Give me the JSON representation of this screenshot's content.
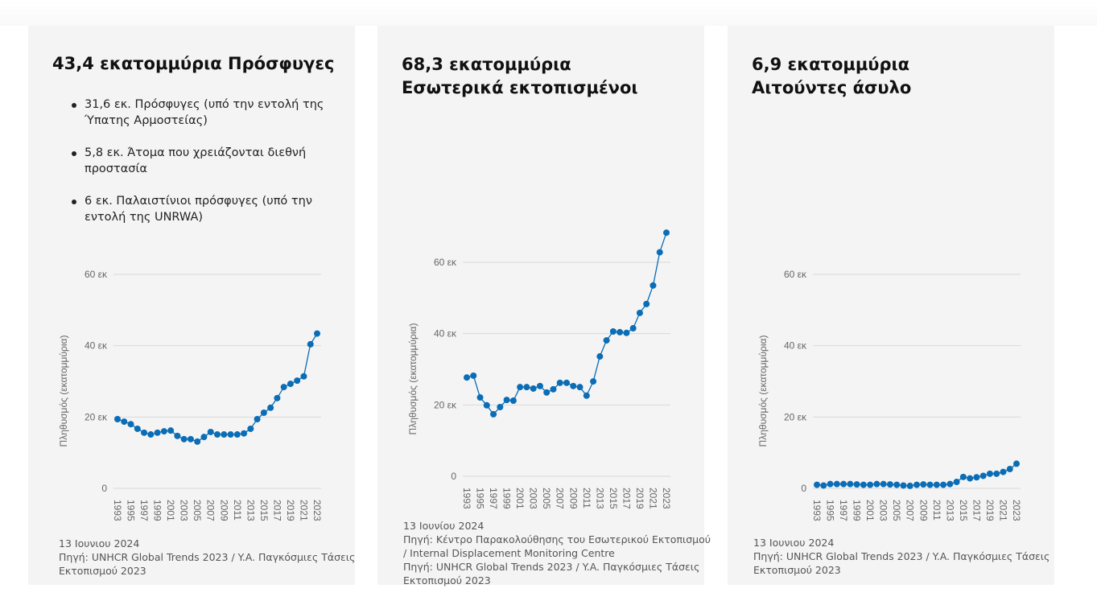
{
  "panels": [
    {
      "title_lines": [
        "43,4 εκατομμύρια Πρόσφυγες"
      ],
      "bullets": [
        "31,6 εκ. Πρόσφυγες (υπό την εντολή της Ύπατης Αρμοστείας)",
        "5,8 εκ. Άτομα που χρειάζονται διεθνή προστασία",
        "6 εκ. Παλαιστίνιοι πρόσφυγες (υπό την εντολή της UNRWA)"
      ],
      "footer": [
        "13  Ιουνιου 2024",
        "Πηγή: UNHCR Global Trends 2023 / Y.A. Παγκόσμιες Τάσεις",
        "Εκτοπισμού 2023"
      ]
    },
    {
      "title_lines": [
        "68,3 εκατομμύρια",
        "Εσωτερικά εκτοπισμένοι"
      ],
      "bullets": [],
      "footer": [
        "13  Ιουνίου 2024",
        "Πηγή: Κέντρο Παρακολούθησης του Εσωτερικού Εκτοπισμού",
        "/ Internal Displacement Monitoring Centre",
        "Πηγή: UNHCR Global Trends 2023 / Y.A. Παγκόσμιες Τάσεις",
        "Εκτοπισμού 2023"
      ]
    },
    {
      "title_lines": [
        "6,9 εκατομμύρια",
        "Αιτούντες άσυλο"
      ],
      "bullets": [],
      "footer": [
        "13  Ιουνιου 2024",
        "Πηγή: UNHCR Global Trends 2023 / Y.A. Παγκόσμιες Τάσεις",
        "Εκτοπισμού 2023"
      ]
    }
  ],
  "colors": {
    "series": "#0a6db5",
    "grid": "#d9d9d9",
    "tick_text": "#666666",
    "panel_bg": "#f4f4f4"
  },
  "chart_data": [
    {
      "type": "line",
      "title": "43,4 εκατομμύρια Πρόσφυγες",
      "xlabel": "",
      "ylabel": "Πληθυσμός (εκατομμύρια)",
      "x": [
        1993,
        1994,
        1995,
        1996,
        1997,
        1998,
        1999,
        2000,
        2001,
        2002,
        2003,
        2004,
        2005,
        2006,
        2007,
        2008,
        2009,
        2010,
        2011,
        2012,
        2013,
        2014,
        2015,
        2016,
        2017,
        2018,
        2019,
        2020,
        2021,
        2022,
        2023
      ],
      "values": [
        19.4,
        18.7,
        18.0,
        16.7,
        15.6,
        15.1,
        15.6,
        16.0,
        16.2,
        14.7,
        13.8,
        13.8,
        13.1,
        14.4,
        15.8,
        15.1,
        15.1,
        15.1,
        15.1,
        15.4,
        16.7,
        19.4,
        21.2,
        22.6,
        25.3,
        28.4,
        29.3,
        30.2,
        31.4,
        40.4,
        43.4
      ],
      "xticks": [
        "1993",
        "1995",
        "1997",
        "1999",
        "2001",
        "2003",
        "2005",
        "2007",
        "2009",
        "2011",
        "2013",
        "2015",
        "2017",
        "2019",
        "2021",
        "2023"
      ],
      "yticks": [
        {
          "v": 0,
          "label": "0"
        },
        {
          "v": 20,
          "label": "20 εκ"
        },
        {
          "v": 40,
          "label": "40 εκ"
        },
        {
          "v": 60,
          "label": "60 εκ"
        }
      ],
      "ylim": [
        0,
        60
      ],
      "grid": true
    },
    {
      "type": "line",
      "title": "68,3 εκατομμύρια Εσωτερικά εκτοπισμένοι",
      "xlabel": "",
      "ylabel": "Πληθυσμός (εκατομμύρια)",
      "x": [
        1993,
        1994,
        1995,
        1996,
        1997,
        1998,
        1999,
        2000,
        2001,
        2002,
        2003,
        2004,
        2005,
        2006,
        2007,
        2008,
        2009,
        2010,
        2011,
        2012,
        2013,
        2014,
        2015,
        2016,
        2017,
        2018,
        2019,
        2020,
        2021,
        2022,
        2023
      ],
      "values": [
        27.7,
        28.2,
        22.1,
        19.9,
        17.4,
        19.4,
        21.4,
        21.2,
        25.0,
        25.0,
        24.6,
        25.3,
        23.5,
        24.4,
        26.2,
        26.2,
        25.3,
        25.0,
        22.6,
        26.6,
        33.6,
        38.1,
        40.6,
        40.4,
        40.2,
        41.5,
        45.8,
        48.3,
        53.5,
        62.8,
        68.3
      ],
      "xticks": [
        "1993",
        "1995",
        "1997",
        "1999",
        "2001",
        "2003",
        "2005",
        "2007",
        "2009",
        "2011",
        "2013",
        "2015",
        "2017",
        "2019",
        "2021",
        "2023"
      ],
      "yticks": [
        {
          "v": 0,
          "label": "0"
        },
        {
          "v": 20,
          "label": "20 εκ"
        },
        {
          "v": 40,
          "label": "40 εκ"
        },
        {
          "v": 60,
          "label": "60 εκ"
        }
      ],
      "ylim": [
        0,
        60
      ],
      "grid": true
    },
    {
      "type": "line",
      "title": "6,9 εκατομμύρια Αιτούντες άσυλο",
      "xlabel": "",
      "ylabel": "Πληθυσμός (εκατομμύρια)",
      "x": [
        1993,
        1994,
        1995,
        1996,
        1997,
        1998,
        1999,
        2000,
        2001,
        2002,
        2003,
        2004,
        2005,
        2006,
        2007,
        2008,
        2009,
        2010,
        2011,
        2012,
        2013,
        2014,
        2015,
        2016,
        2017,
        2018,
        2019,
        2020,
        2021,
        2022,
        2023
      ],
      "values": [
        1.0,
        0.8,
        1.2,
        1.2,
        1.2,
        1.2,
        1.1,
        1.0,
        1.0,
        1.2,
        1.2,
        1.1,
        1.0,
        0.8,
        0.7,
        1.0,
        1.1,
        1.0,
        1.0,
        1.0,
        1.2,
        1.8,
        3.2,
        2.8,
        3.1,
        3.5,
        4.1,
        4.1,
        4.6,
        5.4,
        6.9
      ],
      "xticks": [
        "1993",
        "1995",
        "1997",
        "1999",
        "2001",
        "2003",
        "2005",
        "2007",
        "2009",
        "2011",
        "2013",
        "2015",
        "2017",
        "2019",
        "2021",
        "2023"
      ],
      "yticks": [
        {
          "v": 0,
          "label": "0"
        },
        {
          "v": 20,
          "label": "20 εκ"
        },
        {
          "v": 40,
          "label": "40 εκ"
        },
        {
          "v": 60,
          "label": "60 εκ"
        }
      ],
      "ylim": [
        0,
        60
      ],
      "grid": true
    }
  ]
}
